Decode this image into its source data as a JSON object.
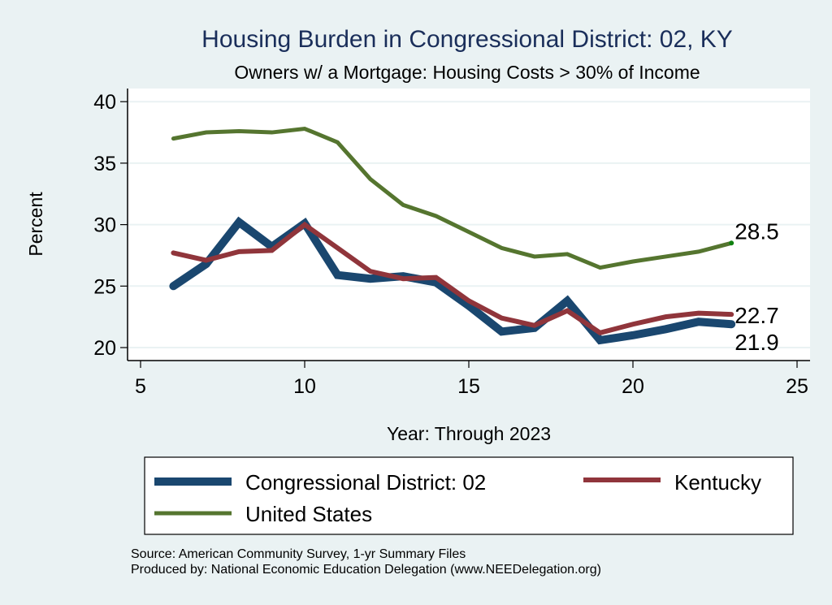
{
  "chart_data": {
    "type": "line",
    "title": "Housing Burden in Congressional District:  02, KY",
    "subtitle": "Owners w/ a Mortgage: Housing Costs > 30% of Income",
    "xlabel": "Year: Through 2023",
    "ylabel": "Percent",
    "xlim": [
      5,
      25
    ],
    "ylim": [
      20,
      40
    ],
    "xticks": [
      5,
      10,
      15,
      20,
      25
    ],
    "yticks": [
      20,
      25,
      30,
      35,
      40
    ],
    "grid": true,
    "legend_position": "bottom",
    "x": [
      6,
      7,
      8,
      9,
      10,
      11,
      12,
      13,
      14,
      15,
      16,
      17,
      18,
      19,
      20,
      21,
      22,
      23
    ],
    "series": [
      {
        "name": "Congressional District:  02",
        "color": "#1a476f",
        "values": [
          25.0,
          26.8,
          30.2,
          28.2,
          30.1,
          25.9,
          25.6,
          25.8,
          25.3,
          23.4,
          21.3,
          21.6,
          23.8,
          20.6,
          21.0,
          21.5,
          22.1,
          21.9
        ],
        "end_label": "21.9"
      },
      {
        "name": "Kentucky",
        "color": "#90353b",
        "values": [
          27.7,
          27.1,
          27.8,
          27.9,
          30.0,
          28.1,
          26.2,
          25.6,
          25.7,
          23.8,
          22.4,
          21.8,
          23.0,
          21.2,
          21.9,
          22.5,
          22.8,
          22.7
        ],
        "end_label": "22.7"
      },
      {
        "name": "United States",
        "color": "#55752f",
        "values": [
          37.0,
          37.5,
          37.6,
          37.5,
          37.8,
          36.7,
          33.7,
          31.6,
          30.7,
          29.4,
          28.1,
          27.4,
          27.6,
          26.5,
          27.0,
          27.4,
          27.8,
          28.5
        ],
        "end_label": "28.5"
      }
    ]
  },
  "notes": {
    "source": "Source: American Community Survey, 1-yr Summary Files",
    "produced_by": "Produced by: National Economic Education Delegation (www.NEEDelegation.org)"
  }
}
